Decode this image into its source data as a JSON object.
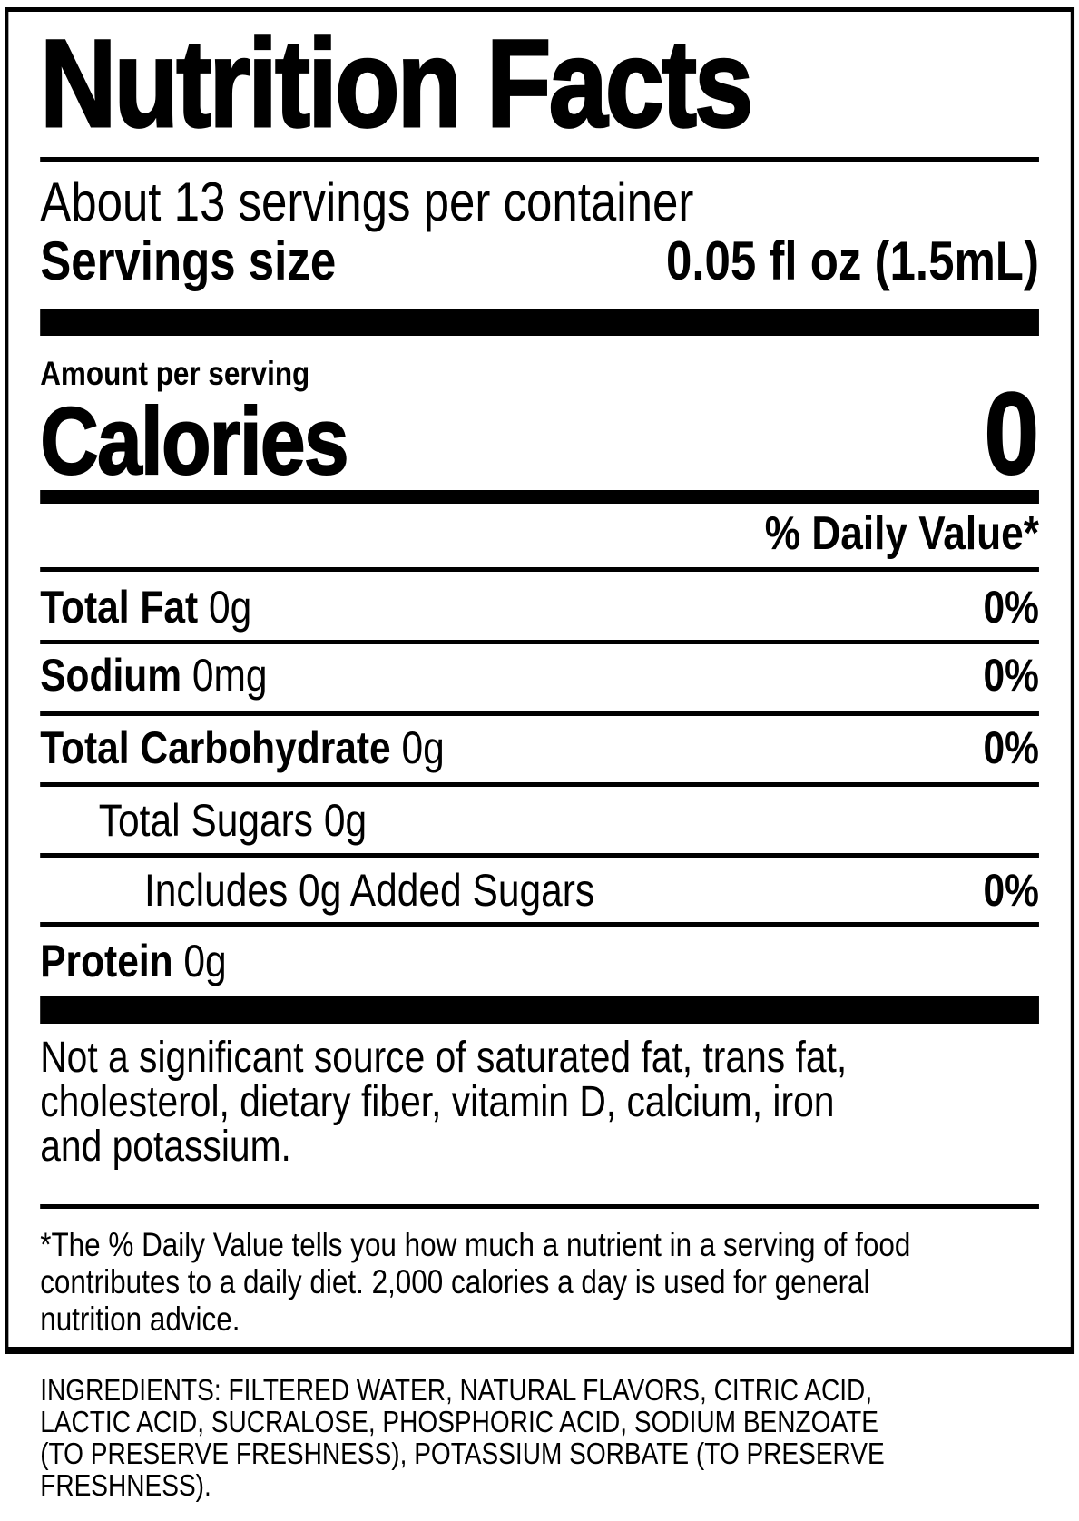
{
  "label": {
    "title": "Nutrition Facts",
    "servings_per_container": "About 13 servings per container",
    "serving_size_label": "Servings size",
    "serving_size_value": "0.05 fl oz (1.5mL)",
    "amount_per_serving": "Amount per serving",
    "calories_label": "Calories",
    "calories_value": "0",
    "daily_value_header": "% Daily Value*",
    "rows": [
      {
        "bold": "Total Fat",
        "rest": " 0g",
        "dv": "0%"
      },
      {
        "bold": "Sodium",
        "rest": " 0mg",
        "dv": "0%"
      },
      {
        "bold": "Total Carbohydrate",
        "rest": " 0g",
        "dv": "0%"
      },
      {
        "bold": "",
        "rest": "Total Sugars 0g",
        "dv": ""
      },
      {
        "bold": "",
        "rest": "Includes 0g Added Sugars",
        "dv": "0%"
      },
      {
        "bold": "Protein",
        "rest": " 0g",
        "dv": ""
      }
    ],
    "not_significant_lines": [
      "Not a significant source of saturated fat, trans fat,",
      "cholesterol, dietary fiber, vitamin D, calcium, iron",
      "and potassium."
    ],
    "footnote_lines": [
      "*The % Daily Value tells you how much a nutrient in a serving of food",
      "contributes to a daily diet. 2,000 calories a day is used for general",
      "nutrition advice."
    ]
  },
  "ingredients_lines": [
    "INGREDIENTS: FILTERED WATER, NATURAL FLAVORS, CITRIC ACID,",
    "LACTIC ACID, SUCRALOSE, PHOSPHORIC ACID, SODIUM BENZOATE",
    "(TO PRESERVE FRESHNESS), POTASSIUM SORBATE (TO PRESERVE",
    "FRESHNESS)."
  ],
  "colors": {
    "ink": "#000000",
    "background": "#ffffff"
  }
}
